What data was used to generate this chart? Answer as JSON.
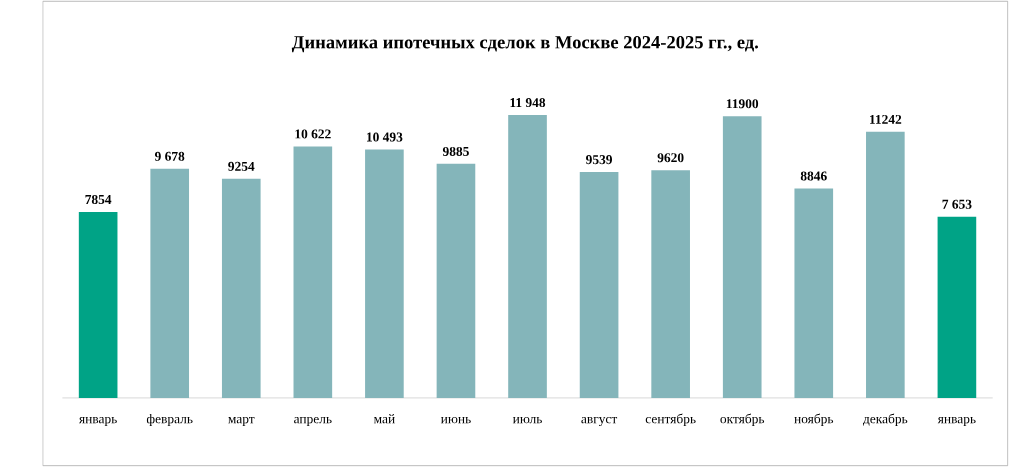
{
  "chart_data": {
    "type": "bar",
    "title": "Динамика ипотечных сделок в Москве 2024-2025 гг., ед.",
    "categories": [
      "январь",
      "февраль",
      "март",
      "апрель",
      "май",
      "июнь",
      "июль",
      "август",
      "сентябрь",
      "октябрь",
      "ноябрь",
      "декабрь",
      "январь"
    ],
    "values": [
      7854,
      9678,
      9254,
      10622,
      10493,
      9885,
      11948,
      9539,
      9620,
      11900,
      8846,
      11242,
      7653
    ],
    "value_labels": [
      "7854",
      "9 678",
      "9254",
      "10 622",
      "10 493",
      "9885",
      "11 948",
      "9539",
      "9620",
      "11900",
      "8846",
      "11242",
      "7 653"
    ],
    "colors": [
      "#00a386",
      "#84b5ba",
      "#84b5ba",
      "#84b5ba",
      "#84b5ba",
      "#84b5ba",
      "#84b5ba",
      "#84b5ba",
      "#84b5ba",
      "#84b5ba",
      "#84b5ba",
      "#84b5ba",
      "#00a386"
    ]
  }
}
